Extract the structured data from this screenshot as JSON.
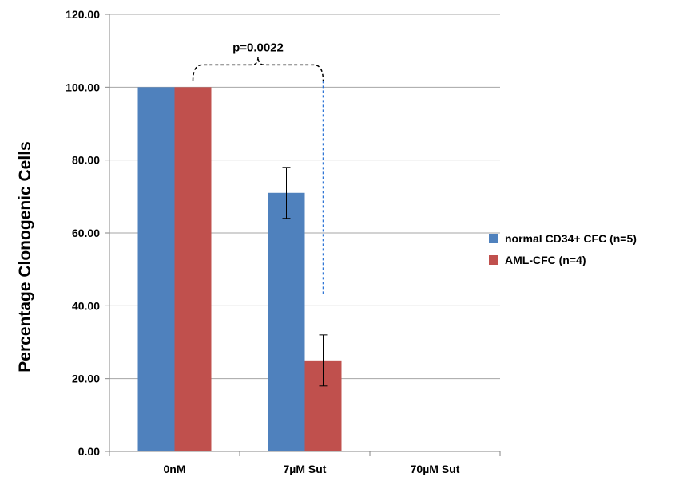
{
  "chart_data": {
    "type": "bar",
    "ylabel": "Percentage Clonogenic Cells",
    "ylim": [
      0,
      120
    ],
    "yticks": [
      "0.00",
      "20.00",
      "40.00",
      "60.00",
      "80.00",
      "100.00",
      "120.00"
    ],
    "grid": true,
    "legend_position": "right",
    "categories": [
      "0nM",
      "7µM Sut",
      "70µM Sut"
    ],
    "series": [
      {
        "name": "normal CD34+ CFC (n=5)",
        "color": "#4F81BD",
        "values": [
          100,
          71,
          0
        ],
        "errors": [
          0,
          7,
          0
        ]
      },
      {
        "name": "AML-CFC (n=4)",
        "color": "#C0504D",
        "values": [
          100,
          25,
          0
        ],
        "errors": [
          0,
          7,
          0
        ]
      }
    ],
    "annotations": [
      {
        "text": "p=0.0022"
      }
    ]
  }
}
